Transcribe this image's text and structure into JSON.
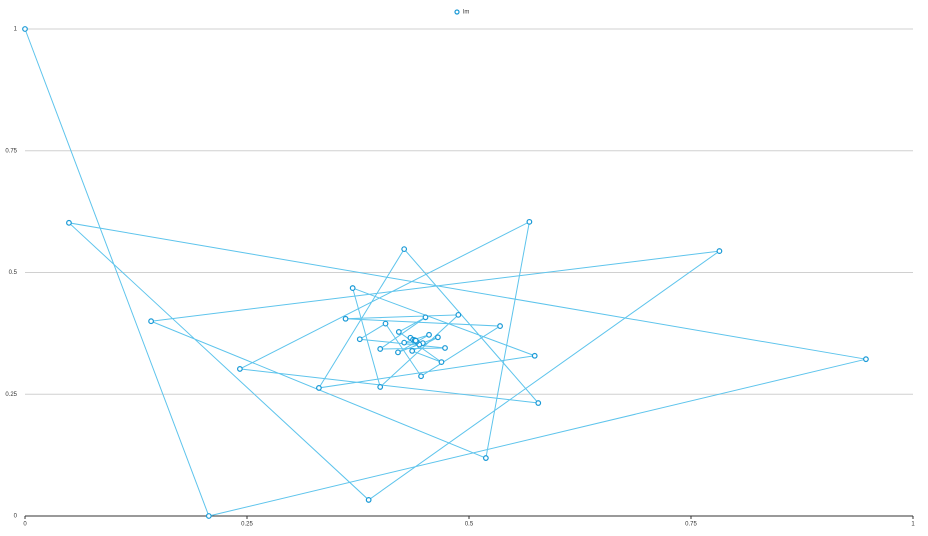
{
  "chart_data": {
    "type": "line",
    "series": [
      {
        "name": "lm",
        "color": "#5ec4ec",
        "marker_color": "#1899d6",
        "x": [
          0,
          0.207,
          0.947,
          0.0495,
          0.387,
          0.782,
          0.142,
          0.519,
          0.568,
          0.242,
          0.578,
          0.427,
          0.331,
          0.574,
          0.369,
          0.4,
          0.488,
          0.361,
          0.535,
          0.446,
          0.406,
          0.377,
          0.473,
          0.4,
          0.451,
          0.421,
          0.469,
          0.436,
          0.465,
          0.42,
          0.455,
          0.427,
          0.448,
          0.434,
          0.444,
          0.437,
          0.441,
          0.439,
          0.44
        ],
        "values": [
          1,
          0,
          0.322,
          0.602,
          0.033,
          0.544,
          0.4,
          0.119,
          0.604,
          0.302,
          0.232,
          0.548,
          0.263,
          0.329,
          0.468,
          0.265,
          0.413,
          0.405,
          0.39,
          0.287,
          0.395,
          0.363,
          0.345,
          0.343,
          0.408,
          0.378,
          0.316,
          0.339,
          0.367,
          0.336,
          0.372,
          0.356,
          0.355,
          0.366,
          0.352,
          0.362,
          0.358,
          0.361,
          0.36
        ]
      }
    ],
    "xlim": [
      0,
      1
    ],
    "xticks": [
      0,
      0.25,
      0.5,
      0.75,
      1
    ],
    "ylim": [
      0,
      1
    ],
    "yticks": [
      0,
      0.25,
      0.5,
      0.75,
      1
    ],
    "grid": true,
    "legend": "top"
  }
}
